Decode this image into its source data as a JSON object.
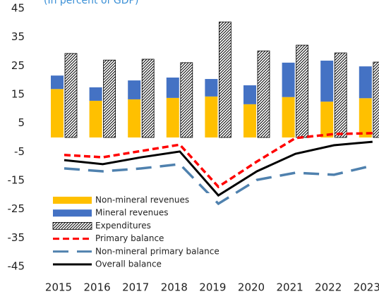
{
  "chart_data": {
    "type": "bar-line",
    "subtitle": "(In percent of GDP)",
    "categories": [
      "2015",
      "2016",
      "2017",
      "2018",
      "2019",
      "2020",
      "2021",
      "2022",
      "2023"
    ],
    "series": [
      {
        "name": "Non-mineral revenues",
        "color": "#FFC000",
        "style": "stacked",
        "values": [
          16.9,
          12.8,
          13.3,
          13.8,
          14.3,
          11.6,
          14.1,
          12.5,
          13.7
        ]
      },
      {
        "name": "Mineral revenues",
        "color": "#4472C4",
        "style": "stacked",
        "values": [
          4.7,
          4.7,
          6.6,
          7.1,
          6.1,
          6.6,
          12.0,
          14.3,
          11.1
        ]
      },
      {
        "name": "Expenditures",
        "color": "#000000",
        "style": "hatched",
        "values": [
          29.3,
          27.0,
          27.3,
          26.1,
          40.3,
          30.2,
          32.2,
          29.5,
          26.3
        ]
      },
      {
        "name": "Primary balance",
        "color": "#FF0000",
        "style": "dashed",
        "values": [
          -6.1,
          -6.9,
          -4.7,
          -2.5,
          -17.2,
          -8.4,
          -0.2,
          1.2,
          1.5
        ]
      },
      {
        "name": "Non-mineral primary balance",
        "color": "#4F81AE",
        "style": "long-dash",
        "values": [
          -10.8,
          -11.8,
          -10.8,
          -9.3,
          -23.1,
          -14.8,
          -12.3,
          -13.0,
          -9.8
        ]
      },
      {
        "name": "Overall balance",
        "color": "#000000",
        "style": "solid",
        "values": [
          -7.9,
          -9.3,
          -6.9,
          -4.9,
          -20.2,
          -11.8,
          -5.7,
          -2.7,
          -1.5
        ]
      }
    ],
    "ylim": [
      -45,
      45
    ],
    "yticks": [
      -45,
      -35,
      -25,
      -15,
      -5,
      5,
      15,
      25,
      35,
      45
    ],
    "legend": "lower left"
  }
}
